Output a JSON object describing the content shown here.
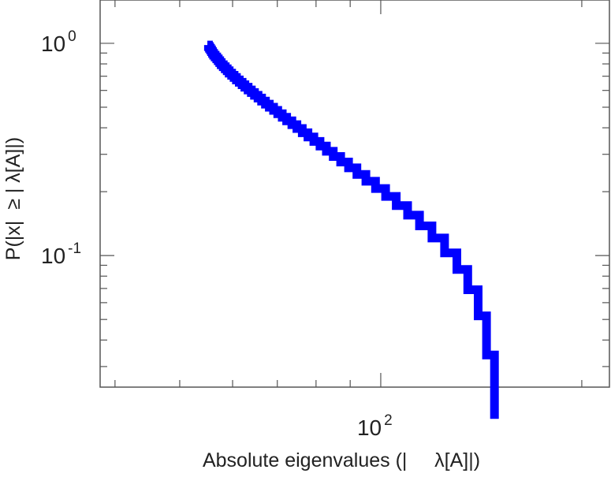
{
  "chart_data": {
    "type": "line",
    "title": "",
    "xlabel": "Absolute eigenvalues (|     λ[A]|)",
    "ylabel": "P(|x|  ≥ | λ[A]|)",
    "xscale": "log",
    "yscale": "log",
    "xlim": [
      38,
      220
    ],
    "ylim": [
      0.024,
      1.6
    ],
    "grid": false,
    "legend": "none",
    "line_style": "step",
    "color": "#0000ff",
    "x_ticks": [
      {
        "value": 100,
        "base": "10",
        "exp": "2"
      }
    ],
    "y_ticks": [
      {
        "value": 1,
        "base": "10",
        "exp": "0"
      },
      {
        "value": 0.1,
        "base": "10",
        "exp": "-1"
      }
    ],
    "series": [
      {
        "x": [
          55.0,
          55.2,
          55.4,
          55.6,
          55.8,
          56.0,
          56.2,
          56.5,
          56.8,
          57.1,
          57.4,
          57.7,
          58.1,
          58.5,
          58.9,
          59.3,
          59.8,
          60.3,
          60.8,
          61.4,
          62.0,
          62.6,
          63.3,
          64.0,
          64.7,
          65.5,
          66.3,
          67.2,
          68.1,
          69.1,
          70.1,
          71.2,
          72.3,
          73.6,
          74.9,
          76.3,
          77.8,
          79.4,
          81.1,
          82.9,
          84.9,
          87.1,
          89.5,
          92.1,
          95.0,
          98.2,
          101.7,
          105.5,
          109.7,
          114.3,
          119.3,
          124.6,
          130.0,
          135.0,
          139.9,
          144.0,
          148.0
        ],
        "y": [
          0.982,
          0.965,
          0.948,
          0.931,
          0.914,
          0.897,
          0.879,
          0.862,
          0.845,
          0.828,
          0.811,
          0.793,
          0.776,
          0.759,
          0.742,
          0.724,
          0.707,
          0.69,
          0.672,
          0.655,
          0.638,
          0.621,
          0.603,
          0.586,
          0.569,
          0.552,
          0.534,
          0.517,
          0.5,
          0.483,
          0.466,
          0.448,
          0.431,
          0.414,
          0.397,
          0.379,
          0.362,
          0.345,
          0.328,
          0.31,
          0.293,
          0.276,
          0.259,
          0.241,
          0.224,
          0.207,
          0.19,
          0.172,
          0.155,
          0.138,
          0.121,
          0.103,
          0.086,
          0.069,
          0.052,
          0.034,
          0.017
        ]
      }
    ]
  }
}
